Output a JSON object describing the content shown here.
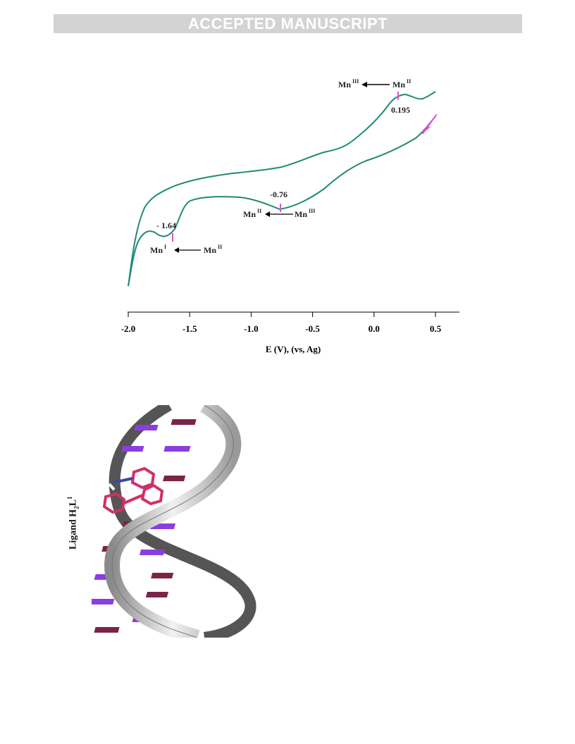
{
  "header": {
    "banner": "ACCEPTED MANUSCRIPT"
  },
  "watermark": "ACCEPTED MANUSCRIPT",
  "chart_data": {
    "type": "line",
    "xlabel": "E (V), (vs, Ag)",
    "xlim": [
      -2.0,
      0.7
    ],
    "ticks": [
      "-2.0",
      "-1.5",
      "-1.0",
      "-0.5",
      "0.0",
      "0.5"
    ],
    "tick_values": [
      -2.0,
      -1.5,
      -1.0,
      -0.5,
      0.0,
      0.5
    ],
    "color": "#1f8a75",
    "marker_color": "#e050c8",
    "peaks": [
      {
        "label": "0.195",
        "x": 0.195
      },
      {
        "label": "-0.76",
        "x": -0.76
      },
      {
        "label": "- 1.64",
        "x": -1.64
      }
    ],
    "annotations": [
      {
        "from": "Mn",
        "from_sup": "II",
        "to": "Mn",
        "to_sup": "III"
      },
      {
        "from": "Mn",
        "from_sup": "III",
        "to": "Mn",
        "to_sup": "II"
      },
      {
        "from": "Mn",
        "from_sup": "II",
        "to": "Mn",
        "to_sup": "I"
      }
    ]
  },
  "figure2": {
    "ligand_label": "Ligand H",
    "ligand_sub": "2",
    "ligand_mid": "L",
    "ligand_sup": "1",
    "colors": {
      "ribbon": "#e8e8e8",
      "base_purple": "#8a3ee0",
      "base_maroon": "#7a2448",
      "ligand": "#d0306a"
    }
  }
}
